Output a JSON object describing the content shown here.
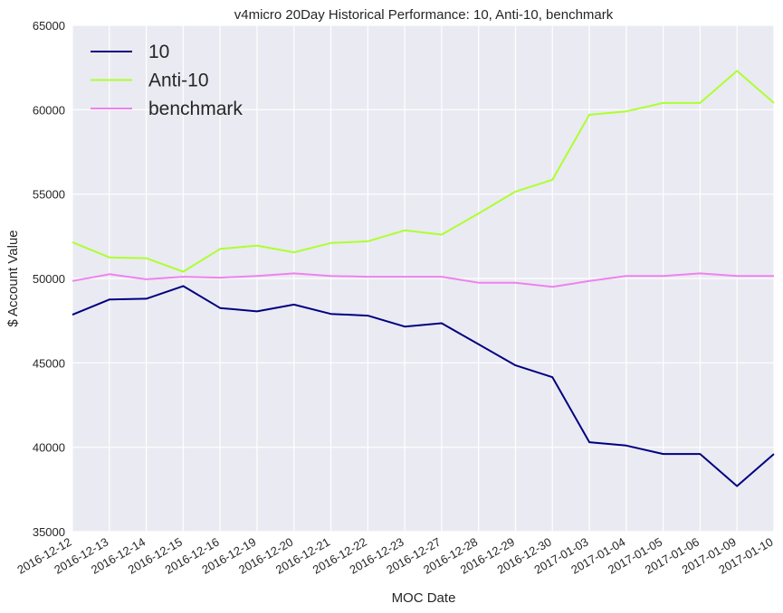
{
  "chart_data": {
    "type": "line",
    "title": "v4micro 20Day Historical Performance: 10, Anti-10, benchmark",
    "xlabel": "MOC Date",
    "ylabel": "$ Account Value",
    "ylim": [
      35000,
      65000
    ],
    "yticks": [
      "35000",
      "40000",
      "45000",
      "50000",
      "55000",
      "60000",
      "65000"
    ],
    "categories": [
      "2016-12-12",
      "2016-12-13",
      "2016-12-14",
      "2016-12-15",
      "2016-12-16",
      "2016-12-19",
      "2016-12-20",
      "2016-12-21",
      "2016-12-22",
      "2016-12-23",
      "2016-12-27",
      "2016-12-28",
      "2016-12-29",
      "2016-12-30",
      "2017-01-03",
      "2017-01-04",
      "2017-01-05",
      "2017-01-06",
      "2017-01-09",
      "2017-01-10"
    ],
    "grid": true,
    "legend_position": "top-left",
    "series": [
      {
        "name": "10",
        "color": "#000080",
        "values": [
          47850,
          48750,
          48800,
          49550,
          48250,
          48050,
          48450,
          47900,
          47800,
          47150,
          47350,
          46100,
          44850,
          44150,
          40300,
          40100,
          39600,
          39600,
          37700,
          39600
        ]
      },
      {
        "name": "Anti-10",
        "color": "#adff2f",
        "values": [
          52150,
          51250,
          51200,
          50400,
          51750,
          51950,
          51550,
          52100,
          52200,
          52850,
          52600,
          53850,
          55150,
          55850,
          59700,
          59900,
          60400,
          60400,
          62300,
          60400
        ]
      },
      {
        "name": "benchmark",
        "color": "#ee82ee",
        "values": [
          49850,
          50250,
          49950,
          50100,
          50050,
          50150,
          50300,
          50150,
          50100,
          50100,
          50100,
          49750,
          49750,
          49500,
          49850,
          50150,
          50150,
          50300,
          50150,
          50150
        ]
      }
    ]
  }
}
